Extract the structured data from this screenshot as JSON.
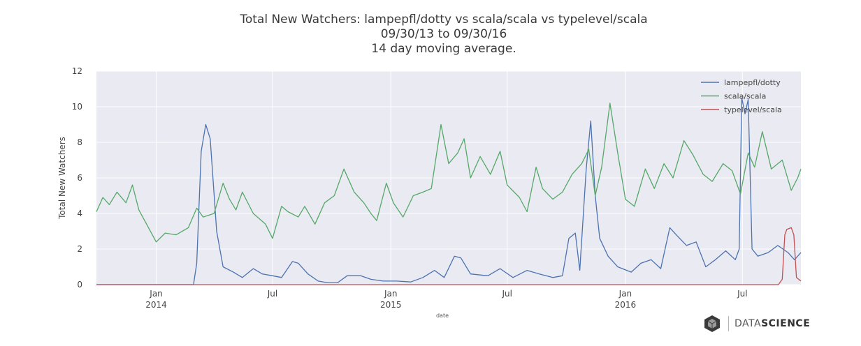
{
  "chart_data": {
    "type": "line",
    "title": "Total New Watchers: lampepfl/dotty vs scala/scala vs typelevel/scala",
    "subtitle": "09/30/13 to 09/30/16",
    "subtitle2": "14 day moving average.",
    "xlabel": "date",
    "ylabel": "Total New Watchers",
    "xlim": [
      "2013-09-30",
      "2016-09-30"
    ],
    "ylim": [
      0,
      12
    ],
    "yticks": [
      "0",
      "2",
      "4",
      "6",
      "8",
      "10",
      "12"
    ],
    "xticks": [
      {
        "date": "2014-01-01",
        "label": "Jan",
        "year": "2014"
      },
      {
        "date": "2014-07-01",
        "label": "Jul",
        "year": ""
      },
      {
        "date": "2015-01-01",
        "label": "Jan",
        "year": "2015"
      },
      {
        "date": "2015-07-01",
        "label": "Jul",
        "year": ""
      },
      {
        "date": "2016-01-01",
        "label": "Jan",
        "year": "2016"
      },
      {
        "date": "2016-07-01",
        "label": "Jul",
        "year": ""
      }
    ],
    "grid": true,
    "legend_position": "top-right",
    "series": [
      {
        "name": "lampepfl/dotty",
        "color": "#4c72b0",
        "points": [
          [
            "2013-09-30",
            0
          ],
          [
            "2014-02-28",
            0
          ],
          [
            "2014-03-05",
            1.2
          ],
          [
            "2014-03-12",
            7.5
          ],
          [
            "2014-03-19",
            9.0
          ],
          [
            "2014-03-26",
            8.2
          ],
          [
            "2014-04-05",
            3.0
          ],
          [
            "2014-04-15",
            1.0
          ],
          [
            "2014-05-01",
            0.7
          ],
          [
            "2014-05-15",
            0.4
          ],
          [
            "2014-06-01",
            0.9
          ],
          [
            "2014-06-15",
            0.6
          ],
          [
            "2014-07-01",
            0.5
          ],
          [
            "2014-07-15",
            0.4
          ],
          [
            "2014-08-01",
            1.3
          ],
          [
            "2014-08-10",
            1.2
          ],
          [
            "2014-08-25",
            0.6
          ],
          [
            "2014-09-10",
            0.2
          ],
          [
            "2014-09-25",
            0.1
          ],
          [
            "2014-10-10",
            0.1
          ],
          [
            "2014-10-25",
            0.5
          ],
          [
            "2014-11-15",
            0.5
          ],
          [
            "2014-12-01",
            0.3
          ],
          [
            "2014-12-20",
            0.2
          ],
          [
            "2015-01-10",
            0.2
          ],
          [
            "2015-02-01",
            0.15
          ],
          [
            "2015-02-20",
            0.4
          ],
          [
            "2015-03-10",
            0.8
          ],
          [
            "2015-03-25",
            0.4
          ],
          [
            "2015-04-10",
            1.6
          ],
          [
            "2015-04-20",
            1.5
          ],
          [
            "2015-05-05",
            0.6
          ],
          [
            "2015-06-01",
            0.5
          ],
          [
            "2015-06-20",
            0.9
          ],
          [
            "2015-07-10",
            0.4
          ],
          [
            "2015-08-01",
            0.8
          ],
          [
            "2015-08-20",
            0.6
          ],
          [
            "2015-09-10",
            0.4
          ],
          [
            "2015-09-25",
            0.5
          ],
          [
            "2015-10-05",
            2.6
          ],
          [
            "2015-10-15",
            2.9
          ],
          [
            "2015-10-22",
            0.8
          ],
          [
            "2015-11-01",
            6.5
          ],
          [
            "2015-11-08",
            9.2
          ],
          [
            "2015-11-15",
            5.0
          ],
          [
            "2015-11-22",
            2.6
          ],
          [
            "2015-12-05",
            1.6
          ],
          [
            "2015-12-20",
            1.0
          ],
          [
            "2016-01-10",
            0.7
          ],
          [
            "2016-01-25",
            1.2
          ],
          [
            "2016-02-10",
            1.4
          ],
          [
            "2016-02-25",
            0.9
          ],
          [
            "2016-03-10",
            3.2
          ],
          [
            "2016-03-20",
            2.8
          ],
          [
            "2016-04-05",
            2.2
          ],
          [
            "2016-04-20",
            2.4
          ],
          [
            "2016-05-05",
            1.0
          ],
          [
            "2016-05-20",
            1.4
          ],
          [
            "2016-06-05",
            1.9
          ],
          [
            "2016-06-20",
            1.4
          ],
          [
            "2016-06-26",
            2.0
          ],
          [
            "2016-06-30",
            10.5
          ],
          [
            "2016-07-05",
            9.6
          ],
          [
            "2016-07-10",
            10.4
          ],
          [
            "2016-07-16",
            2.0
          ],
          [
            "2016-07-25",
            1.6
          ],
          [
            "2016-08-10",
            1.8
          ],
          [
            "2016-08-25",
            2.2
          ],
          [
            "2016-09-10",
            1.8
          ],
          [
            "2016-09-20",
            1.4
          ],
          [
            "2016-09-30",
            1.8
          ]
        ]
      },
      {
        "name": "scala/scala",
        "color": "#55a868",
        "points": [
          [
            "2013-09-30",
            4.1
          ],
          [
            "2013-10-10",
            4.9
          ],
          [
            "2013-10-20",
            4.5
          ],
          [
            "2013-11-01",
            5.2
          ],
          [
            "2013-11-15",
            4.6
          ],
          [
            "2013-11-25",
            5.6
          ],
          [
            "2013-12-05",
            4.2
          ],
          [
            "2013-12-20",
            3.2
          ],
          [
            "2014-01-01",
            2.4
          ],
          [
            "2014-01-15",
            2.9
          ],
          [
            "2014-02-01",
            2.8
          ],
          [
            "2014-02-20",
            3.2
          ],
          [
            "2014-03-05",
            4.3
          ],
          [
            "2014-03-15",
            3.8
          ],
          [
            "2014-04-01",
            4.0
          ],
          [
            "2014-04-15",
            5.7
          ],
          [
            "2014-04-25",
            4.8
          ],
          [
            "2014-05-05",
            4.2
          ],
          [
            "2014-05-15",
            5.2
          ],
          [
            "2014-06-01",
            4.0
          ],
          [
            "2014-06-20",
            3.4
          ],
          [
            "2014-07-01",
            2.6
          ],
          [
            "2014-07-15",
            4.4
          ],
          [
            "2014-07-25",
            4.1
          ],
          [
            "2014-08-10",
            3.8
          ],
          [
            "2014-08-20",
            4.4
          ],
          [
            "2014-09-05",
            3.4
          ],
          [
            "2014-09-20",
            4.6
          ],
          [
            "2014-10-05",
            5.0
          ],
          [
            "2014-10-20",
            6.5
          ],
          [
            "2014-11-05",
            5.2
          ],
          [
            "2014-11-20",
            4.6
          ],
          [
            "2014-12-01",
            4.0
          ],
          [
            "2014-12-10",
            3.6
          ],
          [
            "2014-12-25",
            5.7
          ],
          [
            "2015-01-05",
            4.6
          ],
          [
            "2015-01-20",
            3.8
          ],
          [
            "2015-02-05",
            5.0
          ],
          [
            "2015-02-20",
            5.2
          ],
          [
            "2015-03-05",
            5.4
          ],
          [
            "2015-03-20",
            9.0
          ],
          [
            "2015-04-01",
            6.8
          ],
          [
            "2015-04-15",
            7.4
          ],
          [
            "2015-04-25",
            8.2
          ],
          [
            "2015-05-05",
            6.0
          ],
          [
            "2015-05-20",
            7.2
          ],
          [
            "2015-06-05",
            6.2
          ],
          [
            "2015-06-20",
            7.5
          ],
          [
            "2015-07-01",
            5.6
          ],
          [
            "2015-07-20",
            4.9
          ],
          [
            "2015-08-01",
            4.1
          ],
          [
            "2015-08-15",
            6.6
          ],
          [
            "2015-08-25",
            5.4
          ],
          [
            "2015-09-10",
            4.8
          ],
          [
            "2015-09-25",
            5.2
          ],
          [
            "2015-10-10",
            6.2
          ],
          [
            "2015-10-25",
            6.8
          ],
          [
            "2015-11-05",
            7.6
          ],
          [
            "2015-11-15",
            5.0
          ],
          [
            "2015-11-25",
            6.6
          ],
          [
            "2015-12-08",
            10.2
          ],
          [
            "2015-12-20",
            7.4
          ],
          [
            "2016-01-01",
            4.8
          ],
          [
            "2016-01-15",
            4.4
          ],
          [
            "2016-02-01",
            6.5
          ],
          [
            "2016-02-15",
            5.4
          ],
          [
            "2016-03-01",
            6.8
          ],
          [
            "2016-03-15",
            6.0
          ],
          [
            "2016-04-01",
            8.1
          ],
          [
            "2016-04-15",
            7.3
          ],
          [
            "2016-05-01",
            6.2
          ],
          [
            "2016-05-15",
            5.8
          ],
          [
            "2016-06-01",
            6.8
          ],
          [
            "2016-06-15",
            6.4
          ],
          [
            "2016-06-28",
            5.1
          ],
          [
            "2016-07-10",
            7.4
          ],
          [
            "2016-07-20",
            6.6
          ],
          [
            "2016-08-01",
            8.6
          ],
          [
            "2016-08-15",
            6.5
          ],
          [
            "2016-09-01",
            7.0
          ],
          [
            "2016-09-15",
            5.3
          ],
          [
            "2016-09-25",
            6.0
          ],
          [
            "2016-09-30",
            6.5
          ]
        ]
      },
      {
        "name": "typelevel/scala",
        "color": "#c44e52",
        "points": [
          [
            "2013-09-30",
            0
          ],
          [
            "2016-08-26",
            0
          ],
          [
            "2016-09-01",
            0.3
          ],
          [
            "2016-09-05",
            2.8
          ],
          [
            "2016-09-08",
            3.1
          ],
          [
            "2016-09-15",
            3.2
          ],
          [
            "2016-09-19",
            2.8
          ],
          [
            "2016-09-23",
            0.4
          ],
          [
            "2016-09-30",
            0.2
          ]
        ]
      }
    ]
  },
  "branding": {
    "logo_icon": "hexagon-cube-icon",
    "word_light": "DATA",
    "word_bold": "SCIENCE"
  }
}
